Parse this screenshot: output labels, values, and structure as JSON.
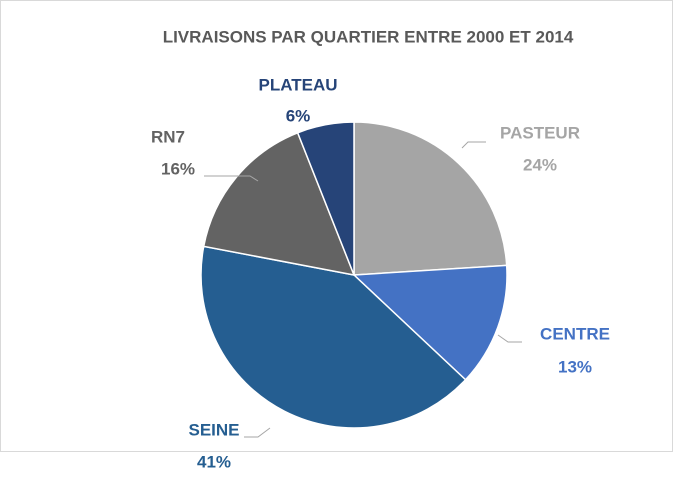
{
  "chart_data": {
    "type": "pie",
    "title": "LIVRAISONS  PAR QUARTIER  ENTRE  2000 ET 2014",
    "categories": [
      "PASTEUR",
      "CENTRE",
      "SEINE",
      "RN7",
      "PLATEAU"
    ],
    "values": [
      24,
      13,
      41,
      16,
      6
    ],
    "value_labels": [
      "24%",
      "13%",
      "41%",
      "16%",
      "6%"
    ],
    "colors": [
      "#a5a5a5",
      "#4472c4",
      "#255e91",
      "#636363",
      "#264478"
    ]
  }
}
